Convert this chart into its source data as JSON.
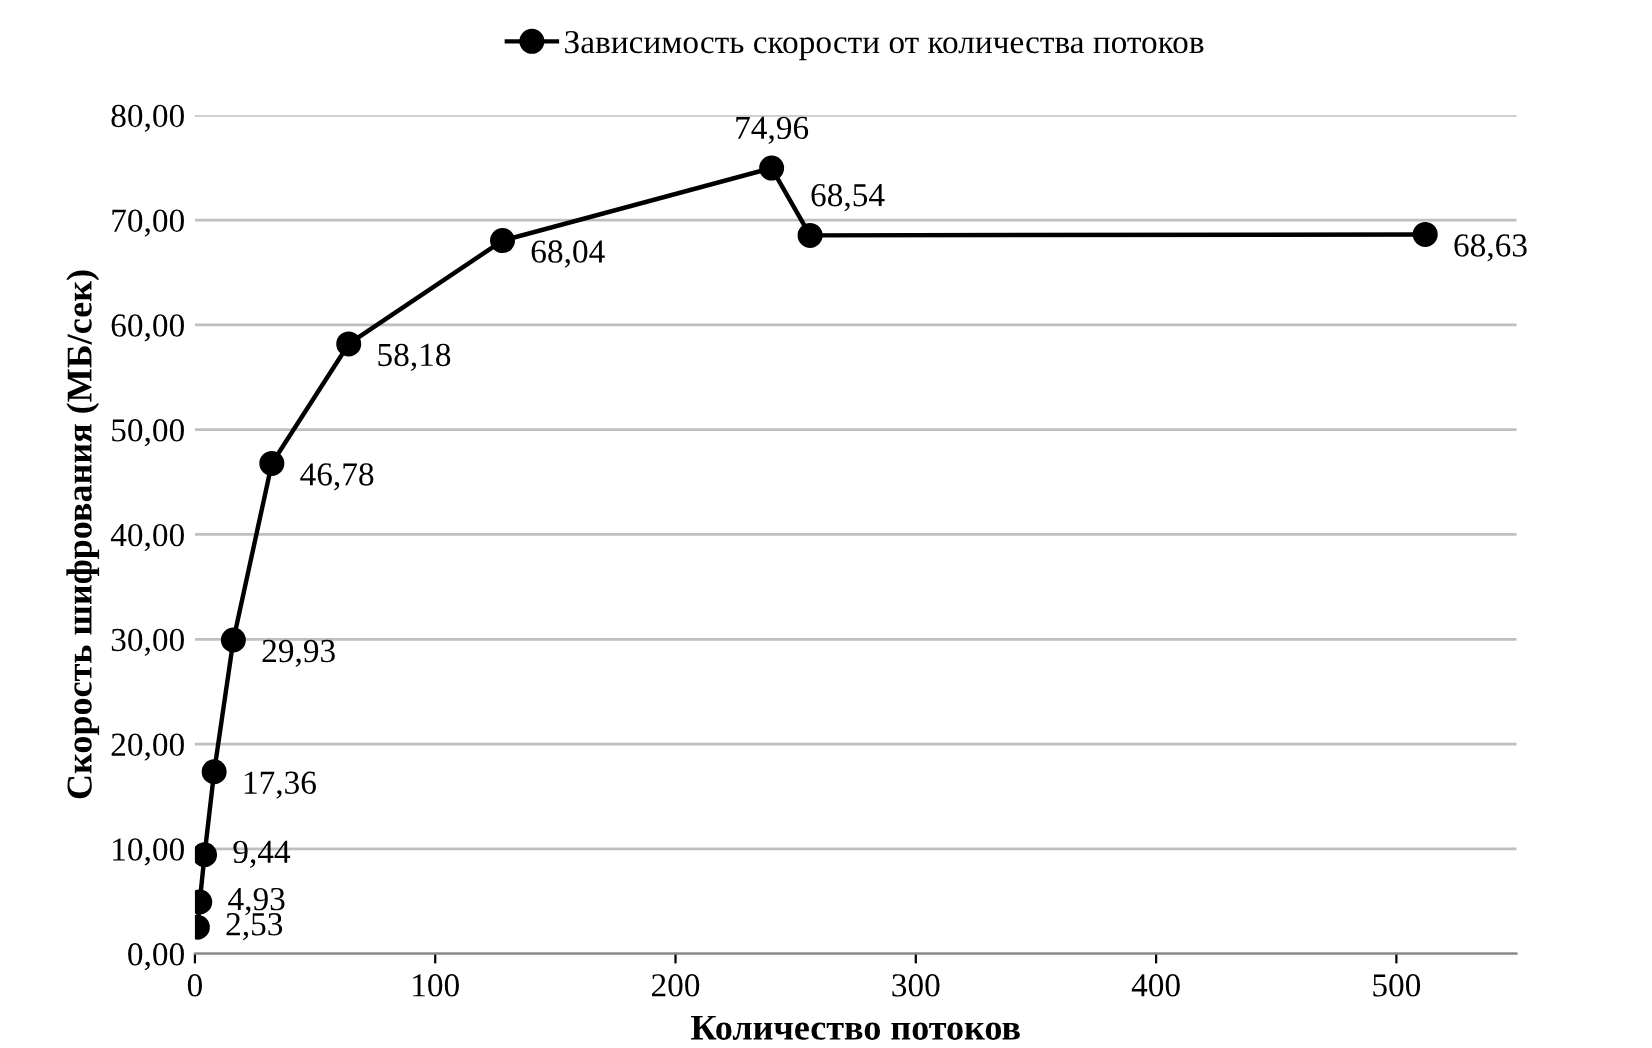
{
  "chart_data": {
    "type": "line",
    "xlabel": "Количество потоков",
    "ylabel": "Скорость шифрования (МБ/сек)",
    "x": [
      1,
      2,
      4,
      8,
      16,
      32,
      64,
      128,
      240,
      256,
      512
    ],
    "series": [
      {
        "name": "Зависимость скорости от количества потоков",
        "color": "#000000",
        "values": [
          2.53,
          4.93,
          9.44,
          17.36,
          29.93,
          46.78,
          58.18,
          68.04,
          74.96,
          68.54,
          68.63
        ],
        "value_labels": [
          "2,53",
          "4,93",
          "9,44",
          "17,36",
          "29,93",
          "46,78",
          "58,18",
          "68,04",
          "74,96",
          "68,54",
          "68,63"
        ]
      }
    ],
    "xlim": [
      0,
      550
    ],
    "xticks": [
      0,
      100,
      200,
      300,
      400,
      500
    ],
    "ylim": [
      0,
      80
    ],
    "yticks": [
      {
        "value": 0,
        "label": "0,00"
      },
      {
        "value": 10,
        "label": "10,00"
      },
      {
        "value": 20,
        "label": "20,00"
      },
      {
        "value": 30,
        "label": "30,00"
      },
      {
        "value": 40,
        "label": "40,00"
      },
      {
        "value": 50,
        "label": "50,00"
      },
      {
        "value": 60,
        "label": "60,00"
      },
      {
        "value": 70,
        "label": "70,00"
      },
      {
        "value": 80,
        "label": "80,00"
      }
    ],
    "grid": "y",
    "legend": "top",
    "marker": "circle",
    "line_style": "solid"
  }
}
